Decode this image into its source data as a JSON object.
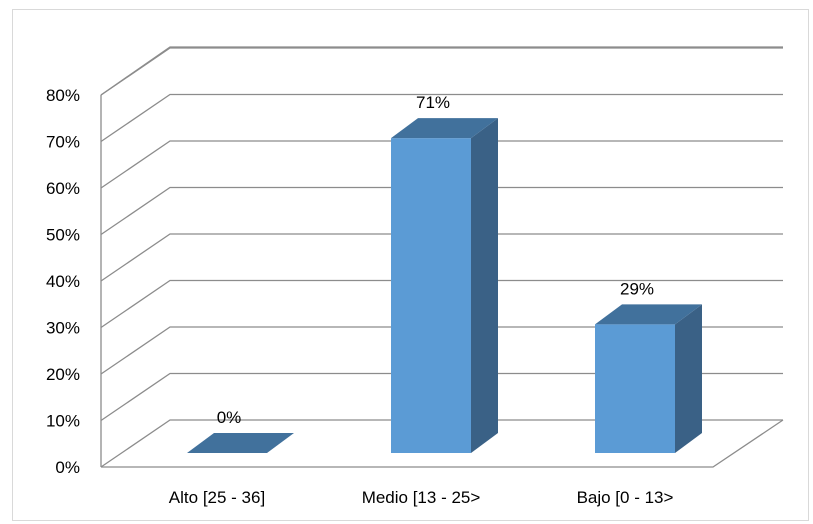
{
  "chart_data": {
    "type": "bar",
    "categories": [
      "Alto [25 - 36]",
      "Medio [13 - 25>",
      "Bajo [0 - 13>"
    ],
    "values": [
      0,
      71,
      29
    ],
    "data_labels": [
      "0%",
      "71%",
      "29%"
    ],
    "ylim": [
      0,
      80
    ],
    "yticks": [
      0,
      10,
      20,
      30,
      40,
      50,
      60,
      70,
      80
    ],
    "ytick_labels": [
      "0%",
      "10%",
      "20%",
      "30%",
      "40%",
      "50%",
      "60%",
      "70%",
      "80%"
    ],
    "grid": true,
    "style": "3d-column",
    "colors": {
      "front": "#5b9bd5",
      "side": "#3a6186",
      "top": "#41719c"
    }
  }
}
